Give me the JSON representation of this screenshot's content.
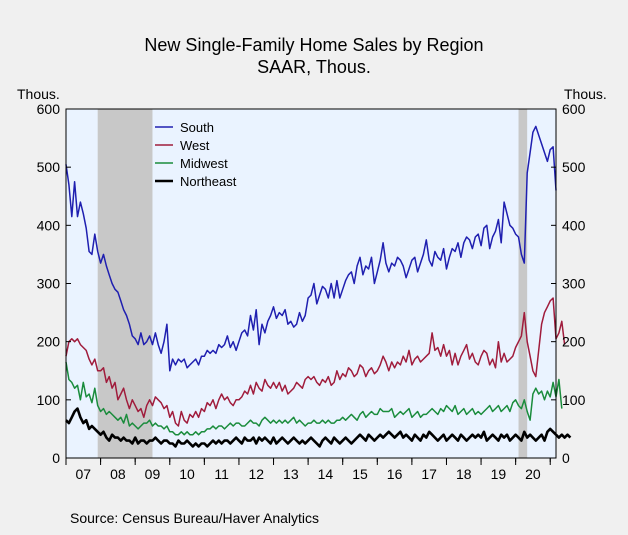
{
  "chart_data": {
    "type": "line",
    "title": "New Single-Family Home Sales by Region",
    "subtitle": "SAAR, Thous.",
    "ylabel_left": "Thous.",
    "ylabel_right": "Thous.",
    "source": "Source:  Census Bureau/Haver Analytics",
    "ylim": [
      0,
      600
    ],
    "yticks": [
      "0",
      "100",
      "200",
      "300",
      "400",
      "500",
      "600"
    ],
    "xlim": [
      "2007-01",
      "2021-03"
    ],
    "xticks": [
      "07",
      "08",
      "09",
      "10",
      "11",
      "12",
      "13",
      "14",
      "15",
      "16",
      "17",
      "18",
      "19",
      "20"
    ],
    "grid": false,
    "legend_position": "top-left inside plot",
    "plot_background": "#eaf3ff",
    "recession_color": "#c8c8c8",
    "recessions": [
      {
        "start": "2007-12",
        "end": "2009-06"
      },
      {
        "start": "2020-02",
        "end": "2020-04"
      }
    ],
    "series_start": "2007-01",
    "series": [
      {
        "name": "South",
        "color": "#1f1fb0",
        "values": [
          505,
          470,
          415,
          475,
          415,
          440,
          420,
          395,
          355,
          350,
          385,
          355,
          335,
          350,
          330,
          315,
          300,
          290,
          285,
          270,
          255,
          245,
          230,
          210,
          205,
          195,
          215,
          195,
          200,
          210,
          195,
          215,
          195,
          180,
          200,
          230,
          150,
          170,
          160,
          170,
          165,
          170,
          155,
          160,
          165,
          170,
          160,
          175,
          175,
          185,
          180,
          185,
          180,
          195,
          190,
          195,
          210,
          190,
          200,
          185,
          200,
          215,
          220,
          210,
          245,
          220,
          255,
          195,
          230,
          215,
          235,
          245,
          260,
          240,
          250,
          245,
          255,
          230,
          235,
          225,
          230,
          250,
          235,
          245,
          275,
          280,
          300,
          265,
          280,
          295,
          290,
          275,
          300,
          275,
          305,
          275,
          290,
          305,
          315,
          320,
          300,
          330,
          345,
          315,
          330,
          325,
          345,
          300,
          320,
          340,
          370,
          335,
          320,
          335,
          330,
          345,
          340,
          330,
          310,
          325,
          340,
          345,
          320,
          335,
          350,
          375,
          340,
          330,
          355,
          345,
          340,
          360,
          325,
          345,
          360,
          355,
          370,
          345,
          370,
          380,
          375,
          360,
          380,
          385,
          365,
          395,
          400,
          360,
          380,
          390,
          410,
          370,
          440,
          420,
          400,
          395,
          385,
          380,
          350,
          335,
          490,
          525,
          560,
          570,
          555,
          540,
          525,
          510,
          530,
          535,
          460
        ]
      },
      {
        "name": "West",
        "color": "#a01c3c",
        "values": [
          175,
          200,
          205,
          200,
          205,
          195,
          190,
          185,
          170,
          160,
          170,
          150,
          150,
          155,
          130,
          140,
          120,
          130,
          100,
          110,
          120,
          100,
          85,
          100,
          90,
          80,
          85,
          70,
          90,
          100,
          90,
          105,
          100,
          95,
          85,
          90,
          70,
          80,
          60,
          55,
          80,
          65,
          60,
          75,
          70,
          80,
          70,
          85,
          80,
          95,
          90,
          100,
          85,
          100,
          110,
          100,
          105,
          95,
          90,
          100,
          100,
          105,
          115,
          110,
          125,
          110,
          130,
          120,
          115,
          135,
          125,
          120,
          130,
          120,
          130,
          115,
          125,
          110,
          115,
          120,
          130,
          125,
          120,
          135,
          140,
          135,
          140,
          130,
          125,
          135,
          130,
          140,
          125,
          130,
          150,
          135,
          145,
          140,
          155,
          150,
          140,
          145,
          160,
          155,
          140,
          150,
          155,
          145,
          150,
          160,
          175,
          165,
          150,
          165,
          155,
          165,
          160,
          175,
          165,
          185,
          160,
          170,
          175,
          165,
          170,
          175,
          180,
          215,
          185,
          190,
          175,
          195,
          175,
          185,
          160,
          180,
          160,
          175,
          185,
          195,
          170,
          180,
          165,
          160,
          175,
          185,
          180,
          160,
          170,
          155,
          200,
          165,
          180,
          165,
          170,
          175,
          190,
          200,
          210,
          250,
          200,
          175,
          150,
          140,
          185,
          230,
          250,
          260,
          270,
          275,
          205,
          215,
          235,
          195
        ]
      },
      {
        "name": "Midwest",
        "color": "#1a8c3c",
        "values": [
          165,
          135,
          130,
          120,
          125,
          100,
          130,
          105,
          110,
          95,
          120,
          90,
          80,
          85,
          75,
          80,
          75,
          70,
          65,
          70,
          60,
          75,
          55,
          60,
          55,
          50,
          55,
          60,
          60,
          65,
          55,
          60,
          55,
          55,
          50,
          55,
          45,
          45,
          40,
          40,
          45,
          40,
          45,
          40,
          40,
          45,
          40,
          45,
          45,
          50,
          50,
          55,
          50,
          55,
          55,
          50,
          55,
          60,
          55,
          60,
          60,
          55,
          55,
          60,
          65,
          60,
          60,
          55,
          65,
          70,
          65,
          60,
          65,
          60,
          65,
          60,
          65,
          60,
          65,
          70,
          60,
          65,
          60,
          55,
          60,
          60,
          65,
          60,
          60,
          65,
          60,
          65,
          60,
          60,
          65,
          65,
          70,
          65,
          70,
          75,
          70,
          65,
          75,
          80,
          70,
          75,
          80,
          75,
          75,
          85,
          80,
          80,
          80,
          85,
          70,
          75,
          80,
          75,
          80,
          85,
          70,
          75,
          80,
          70,
          75,
          75,
          80,
          85,
          80,
          75,
          85,
          80,
          90,
          85,
          80,
          90,
          75,
          80,
          85,
          75,
          80,
          85,
          75,
          80,
          75,
          80,
          85,
          90,
          80,
          85,
          90,
          80,
          85,
          90,
          80,
          95,
          100,
          90,
          85,
          100,
          80,
          65,
          110,
          120,
          110,
          115,
          100,
          115,
          105,
          130,
          105,
          135,
          85
        ]
      },
      {
        "name": "Northeast",
        "color": "#000000",
        "values": [
          65,
          60,
          70,
          80,
          85,
          70,
          60,
          65,
          50,
          55,
          50,
          45,
          40,
          45,
          35,
          30,
          40,
          35,
          35,
          30,
          35,
          30,
          30,
          25,
          35,
          25,
          30,
          30,
          25,
          30,
          30,
          35,
          30,
          25,
          30,
          30,
          25,
          25,
          20,
          30,
          25,
          25,
          30,
          25,
          20,
          25,
          20,
          25,
          25,
          20,
          25,
          30,
          25,
          30,
          25,
          30,
          30,
          25,
          30,
          35,
          30,
          25,
          35,
          30,
          30,
          35,
          25,
          35,
          30,
          35,
          30,
          25,
          35,
          25,
          30,
          35,
          30,
          25,
          30,
          35,
          30,
          25,
          30,
          25,
          30,
          35,
          30,
          25,
          20,
          30,
          35,
          30,
          25,
          35,
          30,
          25,
          30,
          35,
          30,
          25,
          30,
          35,
          40,
          35,
          30,
          40,
          35,
          30,
          35,
          40,
          35,
          40,
          45,
          40,
          35,
          40,
          45,
          35,
          40,
          35,
          30,
          40,
          35,
          30,
          40,
          35,
          45,
          40,
          35,
          30,
          35,
          40,
          30,
          35,
          40,
          35,
          30,
          40,
          35,
          30,
          35,
          40,
          35,
          40,
          35,
          45,
          30,
          35,
          40,
          35,
          30,
          40,
          35,
          40,
          30,
          35,
          40,
          35,
          30,
          45,
          35,
          40,
          35,
          30,
          35,
          40,
          30,
          45,
          50,
          45,
          40,
          35,
          40,
          35,
          40,
          35
        ]
      }
    ]
  }
}
